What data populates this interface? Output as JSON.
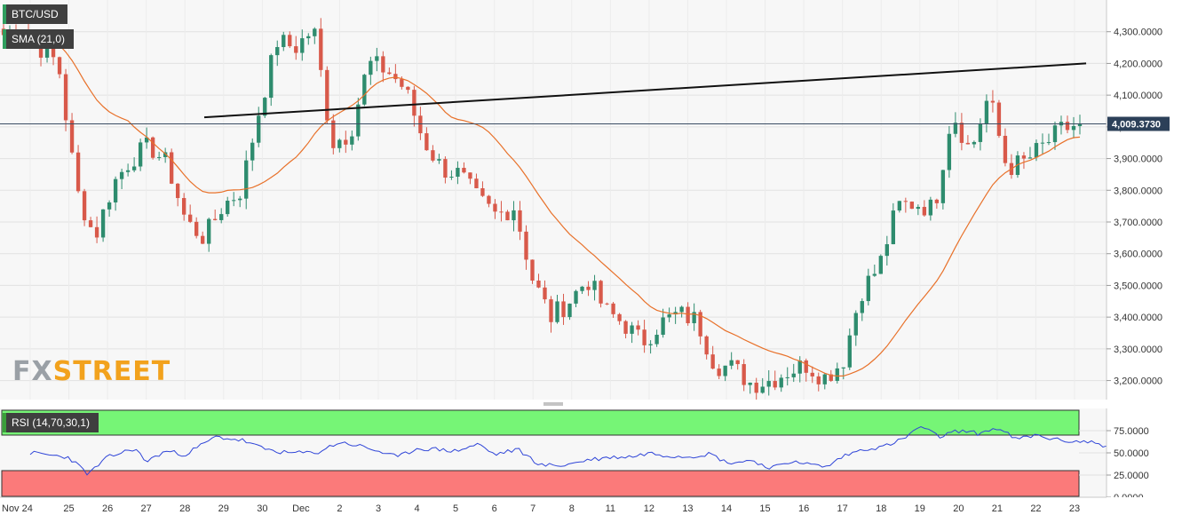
{
  "chart_data": [
    {
      "type": "candlestick",
      "symbol_label": "BTC/USD",
      "indicator_label": "SMA (21,0)",
      "watermark": {
        "part1": "FX",
        "part2": "STREET"
      },
      "last_price_label": "4,009.3730",
      "last_price": 4009.373,
      "ylim": [
        3140,
        4400
      ],
      "y_ticks": [
        {
          "v": 4300,
          "label": "4,300.0000"
        },
        {
          "v": 4200,
          "label": "4,200.0000"
        },
        {
          "v": 4100,
          "label": "4,100.0000"
        },
        {
          "v": 4000,
          "label": "4,000.0000"
        },
        {
          "v": 3900,
          "label": "3,900.0000"
        },
        {
          "v": 3800,
          "label": "3,800.0000"
        },
        {
          "v": 3700,
          "label": "3,700.0000"
        },
        {
          "v": 3600,
          "label": "3,600.0000"
        },
        {
          "v": 3500,
          "label": "3,500.0000"
        },
        {
          "v": 3400,
          "label": "3,400.0000"
        },
        {
          "v": 3300,
          "label": "3,300.0000"
        },
        {
          "v": 3200,
          "label": "3,200.0000"
        }
      ],
      "x_labels": [
        "Nov 24",
        "25",
        "26",
        "27",
        "28",
        "29",
        "30",
        "Dec",
        "2",
        "3",
        "4",
        "5",
        "6",
        "7",
        "8",
        "11",
        "12",
        "13",
        "14",
        "15",
        "16",
        "17",
        "18",
        "19",
        "20",
        "21",
        "22",
        "23"
      ],
      "price_path": [
        [
          0,
          4290
        ],
        [
          1,
          4310
        ],
        [
          2,
          4250
        ],
        [
          3,
          4200
        ],
        [
          4,
          3800
        ],
        [
          5,
          3650
        ],
        [
          6,
          3820
        ],
        [
          7,
          3900
        ],
        [
          8,
          3940
        ],
        [
          9,
          3880
        ],
        [
          10,
          3700
        ],
        [
          11,
          3650
        ],
        [
          12,
          3750
        ],
        [
          13,
          3800
        ],
        [
          14,
          4050
        ],
        [
          15,
          4270
        ],
        [
          16,
          4250
        ],
        [
          17,
          4310
        ],
        [
          18,
          3950
        ],
        [
          19,
          3980
        ],
        [
          20,
          4200
        ],
        [
          21,
          4180
        ],
        [
          22,
          4120
        ],
        [
          23,
          3960
        ],
        [
          24,
          3870
        ],
        [
          25,
          3850
        ],
        [
          26,
          3770
        ],
        [
          27,
          3720
        ],
        [
          28,
          3750
        ],
        [
          29,
          3520
        ],
        [
          30,
          3400
        ],
        [
          31,
          3450
        ],
        [
          32,
          3520
        ],
        [
          33,
          3420
        ],
        [
          34,
          3380
        ],
        [
          35,
          3320
        ],
        [
          36,
          3380
        ],
        [
          37,
          3410
        ],
        [
          38,
          3390
        ],
        [
          39,
          3250
        ],
        [
          40,
          3240
        ],
        [
          41,
          3190
        ],
        [
          42,
          3200
        ],
        [
          43,
          3230
        ],
        [
          44,
          3250
        ],
        [
          45,
          3210
        ],
        [
          46,
          3260
        ],
        [
          47,
          3480
        ],
        [
          48,
          3560
        ],
        [
          49,
          3750
        ],
        [
          50,
          3760
        ],
        [
          51,
          3740
        ],
        [
          52,
          4050
        ],
        [
          53,
          3920
        ],
        [
          54,
          4100
        ],
        [
          55,
          3870
        ],
        [
          56,
          3890
        ],
        [
          57,
          3940
        ],
        [
          58,
          3990
        ],
        [
          59,
          4009
        ]
      ],
      "sma_series": {
        "name": "SMA (21,0)"
      },
      "trendline": {
        "x1": 4.5,
        "y1": 4030,
        "x2": 27.3,
        "y2": 4200
      }
    },
    {
      "type": "line",
      "indicator_label": "RSI (14,70,30,1)",
      "ylim": [
        0,
        100
      ],
      "y_ticks": [
        {
          "v": 75,
          "label": "75.0000"
        },
        {
          "v": 50,
          "label": "50.0000"
        },
        {
          "v": 25,
          "label": "25.0000"
        },
        {
          "v": 0,
          "label": "0.0000"
        }
      ],
      "overbought": 70,
      "oversold": 30,
      "rsi_path": [
        [
          0,
          50
        ],
        [
          1,
          45
        ],
        [
          1.5,
          26
        ],
        [
          2,
          45
        ],
        [
          2.7,
          55
        ],
        [
          3,
          40
        ],
        [
          3.5,
          52
        ],
        [
          4,
          48
        ],
        [
          4.8,
          68
        ],
        [
          5.5,
          64
        ],
        [
          6,
          55
        ],
        [
          6.6,
          50
        ],
        [
          7.4,
          50
        ],
        [
          8,
          62
        ],
        [
          8.5,
          58
        ],
        [
          9,
          52
        ],
        [
          9.5,
          45
        ],
        [
          10,
          55
        ],
        [
          10.5,
          54
        ],
        [
          11,
          52
        ],
        [
          11.6,
          60
        ],
        [
          12,
          48
        ],
        [
          12.6,
          54
        ],
        [
          13.2,
          36
        ],
        [
          13.8,
          36
        ],
        [
          14.4,
          42
        ],
        [
          15,
          45
        ],
        [
          15.6,
          46
        ],
        [
          16,
          50
        ],
        [
          16.5,
          47
        ],
        [
          17,
          46
        ],
        [
          17.6,
          49
        ],
        [
          18,
          39
        ],
        [
          18.4,
          40
        ],
        [
          18.7,
          42
        ],
        [
          19,
          34
        ],
        [
          19.4,
          35
        ],
        [
          19.8,
          42
        ],
        [
          20,
          38
        ],
        [
          20.6,
          34
        ],
        [
          21,
          46
        ],
        [
          21.6,
          55
        ],
        [
          22,
          56
        ],
        [
          22.6,
          66
        ],
        [
          23,
          80
        ],
        [
          23.5,
          68
        ],
        [
          24,
          75
        ],
        [
          24.5,
          72
        ],
        [
          25,
          78
        ],
        [
          25.5,
          65
        ],
        [
          26,
          70
        ],
        [
          26.6,
          64
        ],
        [
          27,
          63
        ],
        [
          27.5,
          62
        ],
        [
          28,
          55
        ],
        [
          28.4,
          52
        ],
        [
          28.8,
          58
        ],
        [
          29,
          52
        ],
        [
          29.3,
          62
        ]
      ],
      "rsi_series": {
        "name": "RSI (14,70,30,1)"
      }
    }
  ]
}
